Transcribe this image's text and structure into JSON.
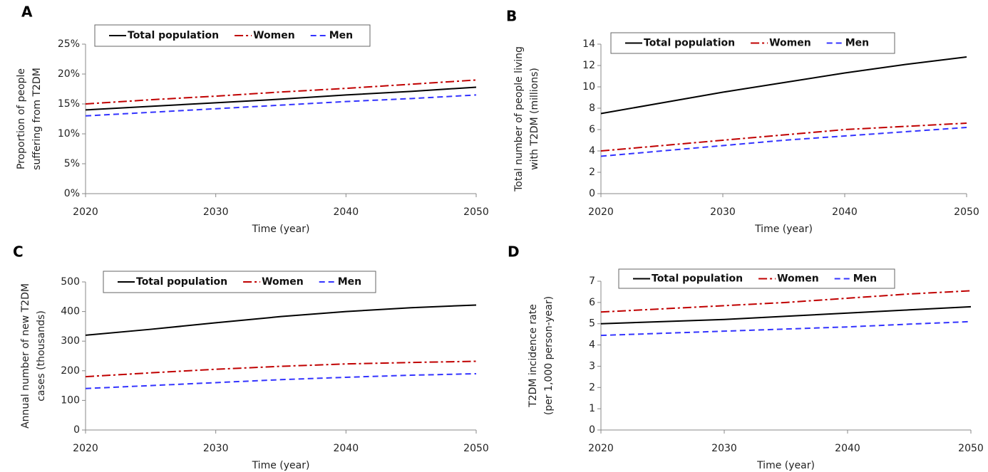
{
  "chart_data": [
    {
      "type": "line",
      "label": "A",
      "x_label": "Time (year)",
      "y_label": [
        "Proportion of people",
        "suffering from T2DM"
      ],
      "x": [
        2020,
        2025,
        2030,
        2035,
        2040,
        2045,
        2050
      ],
      "xlim": [
        2020,
        2050
      ],
      "xticks": [
        2020,
        2030,
        2040,
        2050
      ],
      "ylim": [
        0,
        25
      ],
      "yticks": [
        {
          "value": 0,
          "label": "0%"
        },
        {
          "value": 5,
          "label": "5%"
        },
        {
          "value": 10,
          "label": "10%"
        },
        {
          "value": 15,
          "label": "15%"
        },
        {
          "value": 20,
          "label": "20%"
        },
        {
          "value": 25,
          "label": "25%"
        }
      ],
      "series": [
        {
          "name": "Total population",
          "color": "#000000",
          "dash": "solid",
          "values": [
            14.0,
            14.6,
            15.2,
            15.8,
            16.5,
            17.1,
            17.8
          ]
        },
        {
          "name": "Women",
          "color": "#c00000",
          "dash": "dashdot",
          "values": [
            15.0,
            15.7,
            16.3,
            17.0,
            17.6,
            18.3,
            19.0
          ]
        },
        {
          "name": "Men",
          "color": "#3333ff",
          "dash": "dash",
          "values": [
            13.0,
            13.6,
            14.2,
            14.8,
            15.4,
            15.9,
            16.5
          ]
        }
      ]
    },
    {
      "type": "line",
      "label": "B",
      "x_label": "Time (year)",
      "y_label": [
        "Total number of people living",
        "with T2DM (millions)"
      ],
      "x": [
        2020,
        2025,
        2030,
        2035,
        2040,
        2045,
        2050
      ],
      "xlim": [
        2020,
        2050
      ],
      "xticks": [
        2020,
        2030,
        2040,
        2050
      ],
      "ylim": [
        0,
        14
      ],
      "yticks": [
        0,
        2,
        4,
        6,
        8,
        10,
        12,
        14
      ],
      "series": [
        {
          "name": "Total population",
          "color": "#000000",
          "dash": "solid",
          "values": [
            7.5,
            8.5,
            9.5,
            10.4,
            11.3,
            12.1,
            12.8
          ]
        },
        {
          "name": "Women",
          "color": "#c00000",
          "dash": "dashdot",
          "values": [
            4.0,
            4.5,
            5.0,
            5.5,
            6.0,
            6.3,
            6.6
          ]
        },
        {
          "name": "Men",
          "color": "#3333ff",
          "dash": "dash",
          "values": [
            3.5,
            4.0,
            4.5,
            5.0,
            5.4,
            5.8,
            6.2
          ]
        }
      ]
    },
    {
      "type": "line",
      "label": "C",
      "x_label": "Time (year)",
      "y_label": [
        "Annual number of new T2DM",
        "cases (thousands)"
      ],
      "x": [
        2020,
        2025,
        2030,
        2035,
        2040,
        2045,
        2050
      ],
      "xlim": [
        2020,
        2050
      ],
      "xticks": [
        2020,
        2030,
        2040,
        2050
      ],
      "ylim": [
        0,
        500
      ],
      "yticks": [
        0,
        100,
        200,
        300,
        400,
        500
      ],
      "series": [
        {
          "name": "Total population",
          "color": "#000000",
          "dash": "solid",
          "values": [
            320,
            340,
            362,
            383,
            400,
            413,
            422
          ]
        },
        {
          "name": "Women",
          "color": "#c00000",
          "dash": "dashdot",
          "values": [
            180,
            193,
            205,
            215,
            223,
            228,
            232
          ]
        },
        {
          "name": "Men",
          "color": "#3333ff",
          "dash": "dash",
          "values": [
            140,
            150,
            160,
            170,
            178,
            185,
            190
          ]
        }
      ]
    },
    {
      "type": "line",
      "label": "D",
      "x_label": "Time (year)",
      "y_label": [
        "T2DM incidence rate",
        "(per 1,000 person-year)"
      ],
      "x": [
        2020,
        2025,
        2030,
        2035,
        2040,
        2045,
        2050
      ],
      "xlim": [
        2020,
        2050
      ],
      "xticks": [
        2020,
        2030,
        2040,
        2050
      ],
      "ylim": [
        0,
        7
      ],
      "yticks": [
        0,
        1,
        2,
        3,
        4,
        5,
        6,
        7
      ],
      "series": [
        {
          "name": "Total population",
          "color": "#000000",
          "dash": "solid",
          "values": [
            5.0,
            5.1,
            5.2,
            5.35,
            5.5,
            5.65,
            5.8
          ]
        },
        {
          "name": "Women",
          "color": "#c00000",
          "dash": "dashdot",
          "values": [
            5.55,
            5.7,
            5.85,
            6.0,
            6.2,
            6.4,
            6.55
          ]
        },
        {
          "name": "Men",
          "color": "#3333ff",
          "dash": "dash",
          "values": [
            4.45,
            4.55,
            4.65,
            4.75,
            4.85,
            4.98,
            5.1
          ]
        }
      ]
    }
  ]
}
